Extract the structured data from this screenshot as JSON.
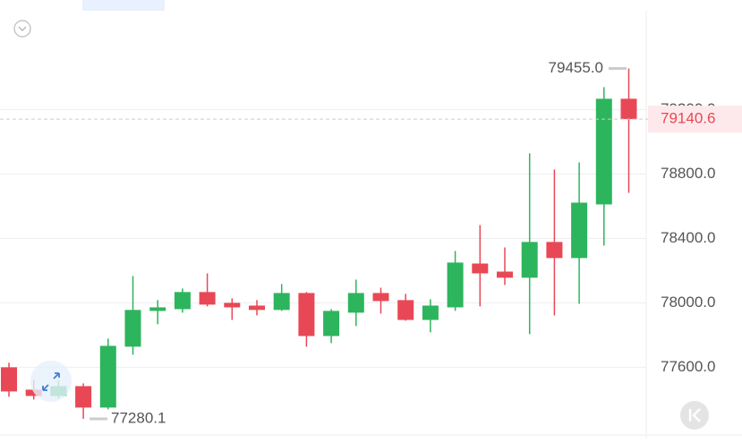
{
  "chart_data": {
    "type": "candlestick",
    "categories": [
      null,
      null,
      null,
      null,
      null,
      null,
      null,
      null,
      null,
      null,
      null,
      null,
      null,
      null,
      null,
      null,
      null,
      null,
      null,
      null,
      null,
      null,
      null,
      null,
      null,
      null
    ],
    "open": [
      77600,
      77461,
      77422,
      77483,
      77350,
      77728,
      77950,
      77961,
      78067,
      78000,
      77983,
      77956,
      78061,
      77794,
      77939,
      78061,
      78017,
      77894,
      77972,
      78244,
      78194,
      78156,
      78378,
      78278,
      78611,
      79267
    ],
    "high": [
      77628,
      77522,
      77517,
      77500,
      77778,
      78167,
      78017,
      78089,
      78183,
      78028,
      78017,
      78117,
      78067,
      77961,
      78144,
      78094,
      78056,
      78022,
      78322,
      78483,
      78344,
      78928,
      78828,
      78872,
      79339,
      79455.0
    ],
    "low": [
      77417,
      77400,
      77406,
      77280.1,
      77339,
      77678,
      77867,
      77939,
      77978,
      77894,
      77922,
      77950,
      77728,
      77750,
      77856,
      77933,
      77889,
      77817,
      77950,
      77978,
      78111,
      77806,
      77922,
      77994,
      78356,
      78683
    ],
    "close": [
      77450,
      77422,
      77483,
      77350,
      77733,
      77956,
      77972,
      78067,
      77989,
      77972,
      77956,
      78061,
      77794,
      77950,
      78061,
      78011,
      77894,
      77983,
      78250,
      78183,
      78156,
      78378,
      78278,
      78622,
      79267,
      79140.6
    ],
    "up_color": "#2db55d",
    "down_color": "#e84855",
    "ylim": [
      77170,
      79880
    ],
    "yticks": [
      {
        "value": 77600,
        "label": "77600.0"
      },
      {
        "value": 78000,
        "label": "78000.0"
      },
      {
        "value": 78400,
        "label": "78400.0"
      },
      {
        "value": 78800,
        "label": "78800.0"
      },
      {
        "value": 79200,
        "label": "79200.0"
      }
    ],
    "grid": true,
    "annotations": [
      {
        "value": 79455.0,
        "label": "79455.0"
      },
      {
        "value": 77280.1,
        "label": "77280.1"
      }
    ],
    "last_price": {
      "value": 79140.6,
      "label": "79140.6"
    }
  }
}
